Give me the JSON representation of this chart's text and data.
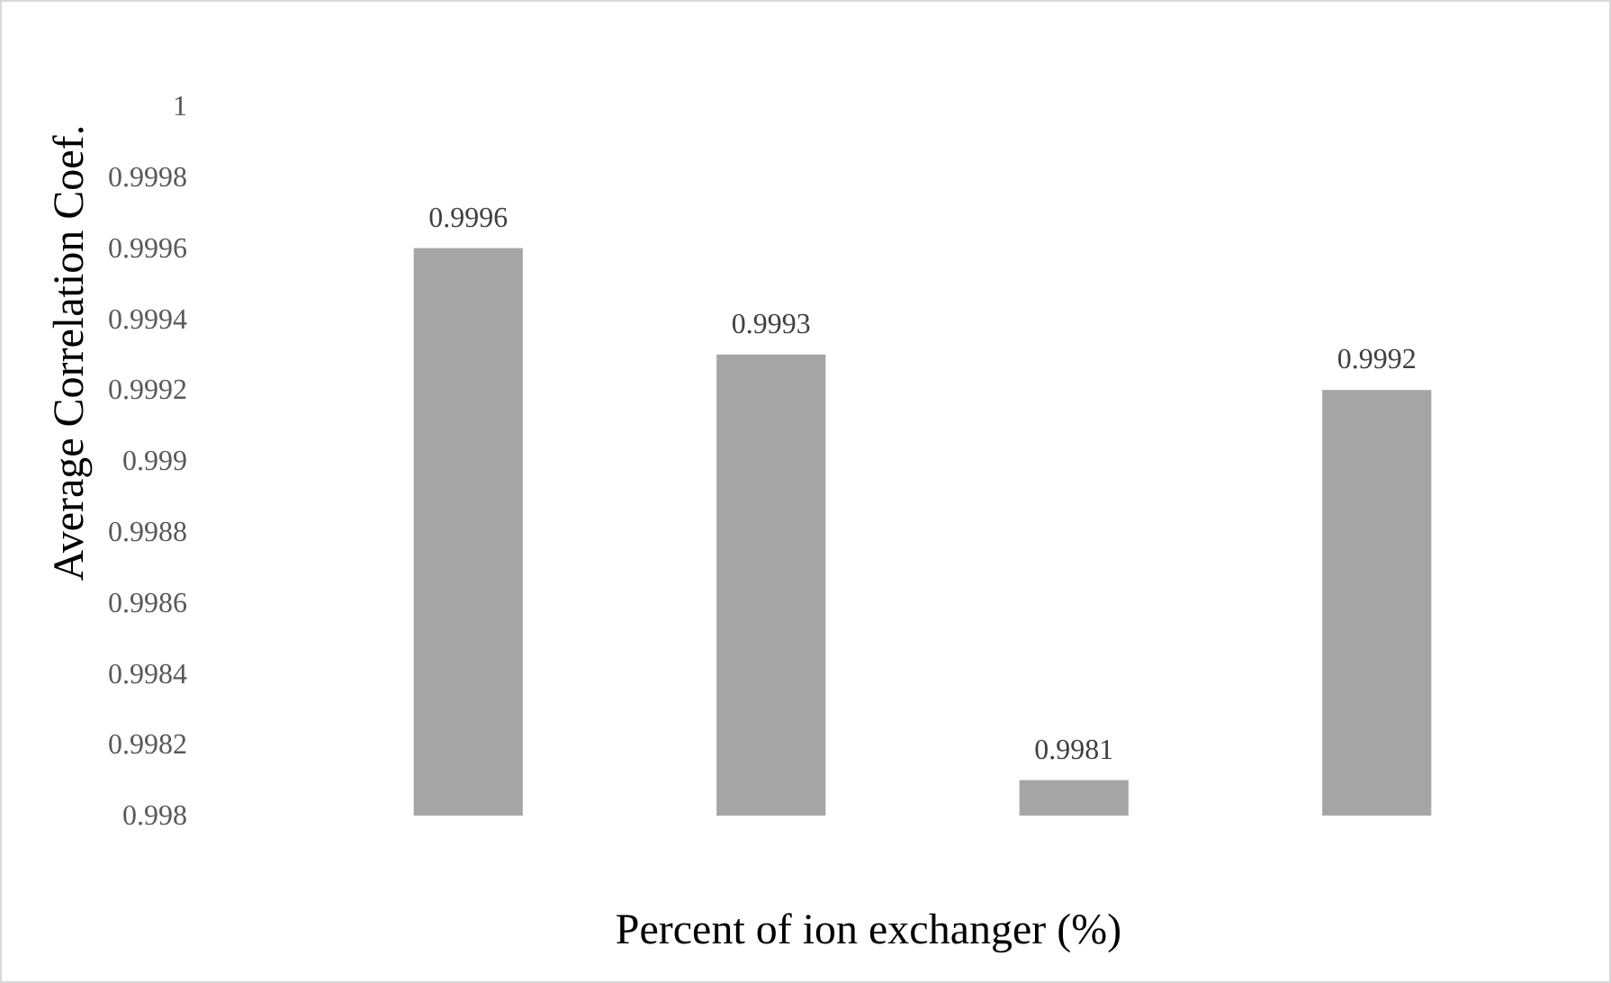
{
  "chart_data": {
    "type": "bar",
    "xlabel": "Percent of ion exchanger (%)",
    "ylabel": "Average Correlation Coef.",
    "categories": [
      null,
      null,
      null,
      null
    ],
    "values": [
      0.9996,
      0.9993,
      0.9981,
      0.9992
    ],
    "color": "#a5a5a5",
    "ylim": [
      0.998,
      1
    ],
    "yticks": [
      0.998,
      0.9982,
      0.9984,
      0.9986,
      0.9988,
      0.999,
      0.9992,
      0.9994,
      0.9996,
      0.9998,
      1
    ],
    "data_labels": true,
    "grid": false
  }
}
